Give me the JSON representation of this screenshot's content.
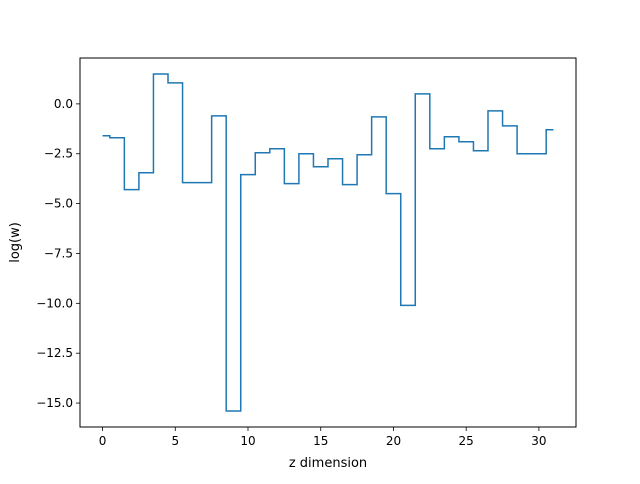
{
  "chart_data": {
    "type": "line",
    "drawstyle": "steps-mid",
    "title": "",
    "xlabel": "z dimension",
    "ylabel": "log(w)",
    "xlim": [
      -1.55,
      32.55
    ],
    "ylim": [
      -16.2,
      2.3
    ],
    "grid": false,
    "line_color": "#1f77b4",
    "xticks": [
      0,
      5,
      10,
      15,
      20,
      25,
      30
    ],
    "xtick_labels": [
      "0",
      "5",
      "10",
      "15",
      "20",
      "25",
      "30"
    ],
    "yticks": [
      0.0,
      -2.5,
      -5.0,
      -7.5,
      -10.0,
      -12.5,
      -15.0
    ],
    "ytick_labels": [
      "0.0",
      "−2.5",
      "−5.0",
      "−7.5",
      "−10.0",
      "−12.5",
      "−15.0"
    ],
    "series": [
      {
        "x": [
          0,
          1,
          2,
          3,
          4,
          5,
          6,
          7,
          8,
          9,
          10,
          11,
          12,
          13,
          14,
          15,
          16,
          17,
          18,
          19,
          20,
          21,
          22,
          23,
          24,
          25,
          26,
          27,
          28,
          29,
          30,
          31
        ],
        "values": [
          -1.6,
          -1.7,
          -4.3,
          -3.45,
          1.5,
          1.05,
          -3.95,
          -3.95,
          -0.6,
          -15.4,
          -3.55,
          -2.45,
          -2.25,
          -4.0,
          -2.5,
          -3.15,
          -2.75,
          -4.05,
          -2.55,
          -0.65,
          -4.5,
          -10.1,
          0.5,
          -2.25,
          -1.65,
          -1.9,
          -2.35,
          -0.35,
          -1.1,
          -2.5,
          -2.5,
          -1.3
        ]
      }
    ]
  }
}
